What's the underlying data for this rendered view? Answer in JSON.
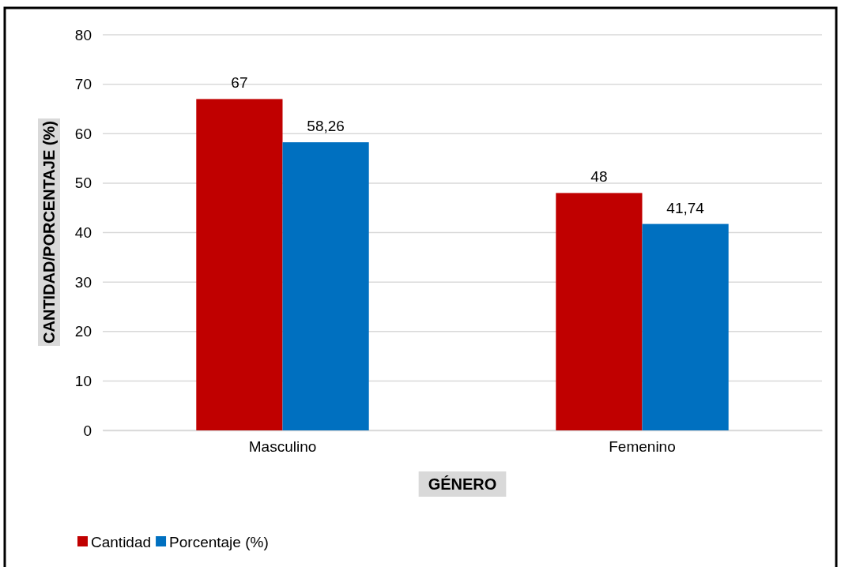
{
  "chart_data": {
    "type": "bar",
    "xlabel": "GÉNERO",
    "ylabel": "CANTIDAD/PORCENTAJE (%)",
    "categories": [
      "Masculino",
      "Femenino"
    ],
    "series": [
      {
        "name": "Cantidad",
        "color": "#c00000",
        "values": [
          67,
          48
        ],
        "value_labels": [
          "67",
          "48"
        ]
      },
      {
        "name": "Porcentaje (%)",
        "color": "#0070c0",
        "values": [
          58.26,
          41.74
        ],
        "value_labels": [
          "58,26",
          "41,74"
        ]
      }
    ],
    "ylim": [
      0,
      80
    ],
    "yticks": [
      0,
      10,
      20,
      30,
      40,
      50,
      60,
      70,
      80
    ],
    "grid": "y",
    "legend": "bottom"
  }
}
